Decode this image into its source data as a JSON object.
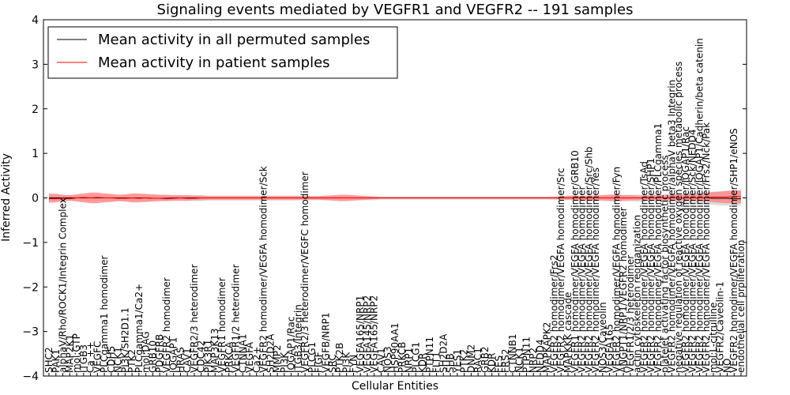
{
  "chart_data": {
    "type": "line",
    "title": "Signaling events mediated by VEGFR1 and VEGFR2 -- 191 samples",
    "xlabel": "Cellular Entities",
    "ylabel": "Inferred Activity",
    "ylim": [
      -4,
      4
    ],
    "yticks": [
      -4,
      -3,
      -2,
      -1,
      0,
      1,
      2,
      3,
      4
    ],
    "legend": {
      "position": "top-left",
      "entries": [
        {
          "label": "Mean activity in all permuted samples",
          "color": "#000000"
        },
        {
          "label": "Mean activity in patient samples",
          "color": "#ff0000"
        }
      ]
    },
    "categories": [
      "SHC2",
      "PAK1",
      "alphaV/Rho/ROCK1/Integrin Complex",
      "MAP2K1",
      "mol:GTP",
      "ITGB3",
      "Ca ++",
      "VEGFC",
      "PLCgamma1 homodimer",
      "CDH5",
      "NCK1",
      "PI3K/SH2D1.1",
      "PTK2",
      "PLCgamma1/Ca2+",
      "mol:DAG",
      "GRB10",
      "PDGFRB",
      "VEGFR2 homodimer",
      "IQGAP1",
      "HRAS",
      "CAV1",
      "VEGFR2/3 heterodimer",
      "CDC42",
      "PIK3R1",
      "MAP3K13",
      "VEGFR1 homodimer",
      "PRKCA",
      "VEGFR1/2 heterodimer",
      "CTNNA1",
      "VEGFA",
      "Ca2+",
      "VEGFR2 homodimer/VEGFA homodimer/Sck",
      "SH2D2A",
      "MMP2",
      "PI3K",
      "IQGAP1/Rac",
      "ITGB3/Integrin",
      "VEGFR2/3 heterodimer/VEGFC homodimer",
      "PLCG1",
      "FIGF",
      "VEGFB/NRP1",
      "SRC",
      "PTK2B",
      "PI3K",
      "FYN",
      "VEGFA165/NRP1",
      "VEGFA145/NRP2",
      "VEGFA165/NRP2",
      "CAV1",
      "NOS3",
      "HSP90AA1",
      "PRKCB",
      "NRP1",
      "PLCG1",
      "KDR",
      "PTPN11",
      "FLT1",
      "SH2D2A",
      "SHB",
      "YES1",
      "PTK2",
      "DNM2",
      "RAC1",
      "GRB2",
      "KDR",
      "FES",
      "FRS2",
      "CTNNB1",
      "NCK1",
      "PTPN11",
      "NRP2",
      "NEDD4",
      "MAPKAPK2",
      "VEGFR2 homodimer/Frs2",
      "VEGFR2 homodimer/VEGFA homodimer/Src",
      "MAPKKK cascade",
      "VEGFR1 homodimer/VEGFA homodimer/GRB10",
      "VEGFR2 homodimer/VEGFA homodimer",
      "VEGFR2 homodimer/VEGFA homodimer/Src/Shb",
      "VEGFR2 homodimer/VEGFA homodimer/Yes",
      "NOS3/Caveolin",
      "VEGFA165",
      "VEGFR2 homodimer/VEGFA homodimer/Fyn",
      "ANGPT1/NRP1/VEGFR2 homodimer",
      "VEGFR1/2/3 heterodimer",
      "actin cytoskeleton reorganization",
      "VEGFR2 homodimer/VEGFA homodimer/TsAd",
      "VEGFR2 homodimer/VEGFA homodimer/SHP1",
      "VEGFR2 homodimer/VEGFA homodimer/PLCgamma1",
      "platelet activating factor biosynthetic process",
      "VEGFR2 homodimer/VEGFA homodimer/alphaV beta3 Integrin",
      "negative regulation of reactive oxygen species metabolic process",
      "VEGFR2 homodimer/VEGFA homodimer/IQGAP1/Rac",
      "VEGFR2 homodimer/VEGFA homodimer/Sck/NEDD4",
      "VEGFR2 homodimer/VEGFA homodimer/IQGAP1/Cadherin/beta catenin",
      "VEGFR2 homodimer/VEGFA homodimer/Frs2/Nck/Pak",
      "mol:L-citrulline",
      "VEGFR2/Caveolin-1",
      "NO",
      "VEGFR2 homodimer/VEGFA homodimer/SHP1/eNOS",
      "endothelial cell proliferation"
    ],
    "series": [
      {
        "name": "Mean activity in all permuted samples",
        "color": "#000000",
        "values": [
          0.0,
          0.0,
          0.0,
          0.0,
          0.0,
          0.0,
          0.0,
          0.0,
          0.0,
          0.0,
          0.0,
          0.0,
          0.0,
          0.0,
          0.0,
          -0.01,
          -0.01,
          -0.01,
          0.0,
          0.0,
          0.0,
          0.0,
          0.0,
          0.0,
          0.0,
          0.0,
          0.0,
          0.0,
          0.0,
          0.0,
          0.0,
          0.0,
          0.0,
          0.0,
          0.0,
          0.0,
          0.0,
          0.0,
          0.0,
          0.0,
          0.0,
          0.0,
          0.0,
          0.0,
          0.0,
          0.0,
          0.0,
          0.0,
          0.0,
          0.0,
          0.0,
          0.0,
          0.0,
          0.0,
          0.0,
          0.0,
          0.0,
          0.0,
          0.0,
          0.0,
          0.0,
          0.0,
          0.0,
          0.0,
          0.0,
          0.0,
          0.0,
          0.0,
          0.0,
          0.0,
          0.0,
          0.0,
          0.0,
          0.0,
          0.0,
          0.0,
          0.0,
          0.0,
          0.0,
          0.0,
          0.0,
          0.0,
          0.0,
          0.0,
          0.0,
          0.0,
          0.0,
          0.0,
          0.0,
          0.0,
          0.0,
          0.0,
          0.0,
          0.0,
          0.0,
          0.0,
          -0.01,
          -0.01,
          -0.01,
          -0.02,
          -0.02
        ]
      },
      {
        "name": "Mean activity in patient samples",
        "color": "#ff0000",
        "values": [
          -0.02,
          -0.02,
          -0.01,
          -0.02,
          0.0,
          0.01,
          0.0,
          0.01,
          0.0,
          0.0,
          -0.01,
          -0.01,
          0.0,
          -0.01,
          0.0,
          -0.01,
          -0.01,
          -0.02,
          -0.01,
          0.0,
          -0.01,
          -0.01,
          0.0,
          0.0,
          0.0,
          0.0,
          0.0,
          0.0,
          0.0,
          0.0,
          0.0,
          0.0,
          0.0,
          0.0,
          0.0,
          0.0,
          0.0,
          0.0,
          0.0,
          0.0,
          0.0,
          0.0,
          0.0,
          0.0,
          0.0,
          0.0,
          0.0,
          0.0,
          0.0,
          0.0,
          0.0,
          0.0,
          0.0,
          0.0,
          0.0,
          0.0,
          0.0,
          0.0,
          0.0,
          0.0,
          0.0,
          0.0,
          0.0,
          0.0,
          0.0,
          0.0,
          0.0,
          0.0,
          0.0,
          0.0,
          0.0,
          0.0,
          0.0,
          0.0,
          0.0,
          0.0,
          0.0,
          0.0,
          0.0,
          0.0,
          0.0,
          0.0,
          0.0,
          0.0,
          0.0,
          0.0,
          0.0,
          0.0,
          0.0,
          0.0,
          0.0,
          0.0,
          0.0,
          0.0,
          0.0,
          0.0,
          0.02,
          0.02,
          0.02,
          0.03,
          0.03
        ]
      }
    ],
    "bands": [
      {
        "name": "patient-samples-band",
        "color": "#ff7f7f",
        "lower": [
          -0.11,
          -0.1,
          -0.07,
          -0.06,
          -0.08,
          -0.1,
          -0.12,
          -0.12,
          -0.1,
          -0.09,
          -0.07,
          -0.08,
          -0.1,
          -0.1,
          -0.09,
          -0.08,
          -0.07,
          -0.07,
          -0.06,
          -0.06,
          -0.06,
          -0.05,
          -0.05,
          -0.04,
          -0.04,
          -0.04,
          -0.04,
          -0.04,
          -0.04,
          -0.04,
          -0.04,
          -0.04,
          -0.04,
          -0.04,
          -0.04,
          -0.04,
          -0.04,
          -0.04,
          -0.04,
          -0.04,
          -0.05,
          -0.06,
          -0.07,
          -0.07,
          -0.06,
          -0.05,
          -0.04,
          -0.03,
          -0.02,
          -0.02,
          -0.02,
          -0.02,
          -0.02,
          -0.02,
          -0.02,
          -0.02,
          -0.02,
          -0.02,
          -0.02,
          -0.02,
          -0.02,
          -0.02,
          -0.02,
          -0.02,
          -0.02,
          -0.02,
          -0.02,
          -0.02,
          -0.02,
          -0.02,
          -0.02,
          -0.02,
          -0.02,
          -0.02,
          -0.03,
          -0.04,
          -0.04,
          -0.04,
          -0.05,
          -0.05,
          -0.05,
          -0.06,
          -0.07,
          -0.06,
          -0.05,
          -0.05,
          -0.04,
          -0.04,
          -0.05,
          -0.05,
          -0.06,
          -0.06,
          -0.06,
          -0.06,
          -0.07,
          -0.08,
          -0.1,
          -0.11,
          -0.12,
          -0.12,
          -0.12
        ],
        "upper": [
          0.1,
          0.09,
          0.07,
          0.06,
          0.08,
          0.1,
          0.12,
          0.12,
          0.1,
          0.09,
          0.07,
          0.08,
          0.1,
          0.1,
          0.09,
          0.08,
          0.07,
          0.07,
          0.06,
          0.06,
          0.06,
          0.05,
          0.05,
          0.04,
          0.04,
          0.04,
          0.04,
          0.04,
          0.04,
          0.04,
          0.04,
          0.04,
          0.04,
          0.04,
          0.04,
          0.04,
          0.04,
          0.04,
          0.04,
          0.04,
          0.05,
          0.06,
          0.07,
          0.07,
          0.06,
          0.05,
          0.04,
          0.03,
          0.02,
          0.02,
          0.02,
          0.02,
          0.02,
          0.02,
          0.02,
          0.02,
          0.02,
          0.02,
          0.02,
          0.02,
          0.02,
          0.02,
          0.02,
          0.02,
          0.02,
          0.02,
          0.02,
          0.02,
          0.02,
          0.02,
          0.02,
          0.02,
          0.02,
          0.02,
          0.03,
          0.05,
          0.05,
          0.04,
          0.05,
          0.05,
          0.06,
          0.07,
          0.08,
          0.06,
          0.06,
          0.05,
          0.05,
          0.05,
          0.06,
          0.06,
          0.07,
          0.07,
          0.07,
          0.08,
          0.09,
          0.11,
          0.13,
          0.14,
          0.16,
          0.17,
          0.17
        ]
      },
      {
        "name": "permuted-samples-band",
        "color": "#c0c0c0",
        "lower": [
          -0.07,
          -0.07,
          -0.07,
          -0.07,
          -0.07,
          -0.07,
          -0.07,
          -0.07,
          -0.07,
          -0.07,
          -0.07,
          -0.07,
          -0.07,
          -0.07,
          -0.07,
          -0.07,
          -0.07,
          -0.07,
          -0.07,
          -0.07,
          -0.07,
          -0.07,
          -0.07,
          -0.06,
          -0.06,
          -0.06,
          -0.06,
          -0.06,
          -0.06,
          -0.06,
          -0.06,
          -0.06,
          -0.06,
          -0.06,
          -0.06,
          -0.06,
          -0.06,
          -0.05,
          -0.05,
          -0.05,
          -0.05,
          -0.05,
          -0.05,
          -0.05,
          -0.05,
          -0.05,
          -0.05,
          -0.05,
          -0.04,
          -0.04,
          -0.04,
          -0.04,
          -0.04,
          -0.04,
          -0.04,
          -0.04,
          -0.04,
          -0.04,
          -0.04,
          -0.04,
          -0.04,
          -0.04,
          -0.04,
          -0.04,
          -0.04,
          -0.04,
          -0.04,
          -0.04,
          -0.04,
          -0.04,
          -0.04,
          -0.04,
          -0.04,
          -0.05,
          -0.05,
          -0.05,
          -0.06,
          -0.06,
          -0.06,
          -0.07,
          -0.07,
          -0.08,
          -0.08,
          -0.08,
          -0.08,
          -0.08,
          -0.09,
          -0.09,
          -0.09,
          -0.1,
          -0.1,
          -0.11,
          -0.12,
          -0.13,
          -0.14,
          -0.15,
          -0.16,
          -0.17,
          -0.17,
          -0.17,
          -0.17
        ],
        "upper": [
          0.06,
          0.06,
          0.06,
          0.06,
          0.06,
          0.06,
          0.06,
          0.06,
          0.06,
          0.06,
          0.06,
          0.06,
          0.06,
          0.06,
          0.06,
          0.06,
          0.06,
          0.06,
          0.06,
          0.06,
          0.06,
          0.06,
          0.06,
          0.05,
          0.05,
          0.05,
          0.05,
          0.05,
          0.05,
          0.05,
          0.05,
          0.05,
          0.05,
          0.05,
          0.05,
          0.05,
          0.05,
          0.04,
          0.04,
          0.04,
          0.04,
          0.04,
          0.04,
          0.04,
          0.04,
          0.04,
          0.04,
          0.04,
          0.03,
          0.03,
          0.03,
          0.03,
          0.03,
          0.03,
          0.03,
          0.03,
          0.03,
          0.03,
          0.03,
          0.03,
          0.03,
          0.03,
          0.03,
          0.03,
          0.03,
          0.03,
          0.03,
          0.03,
          0.03,
          0.03,
          0.03,
          0.03,
          0.03,
          0.04,
          0.04,
          0.04,
          0.05,
          0.05,
          0.05,
          0.06,
          0.06,
          0.07,
          0.07,
          0.07,
          0.07,
          0.07,
          0.08,
          0.08,
          0.08,
          0.09,
          0.09,
          0.1,
          0.11,
          0.12,
          0.12,
          0.13,
          0.14,
          0.15,
          0.15,
          0.15,
          0.15
        ]
      }
    ]
  }
}
